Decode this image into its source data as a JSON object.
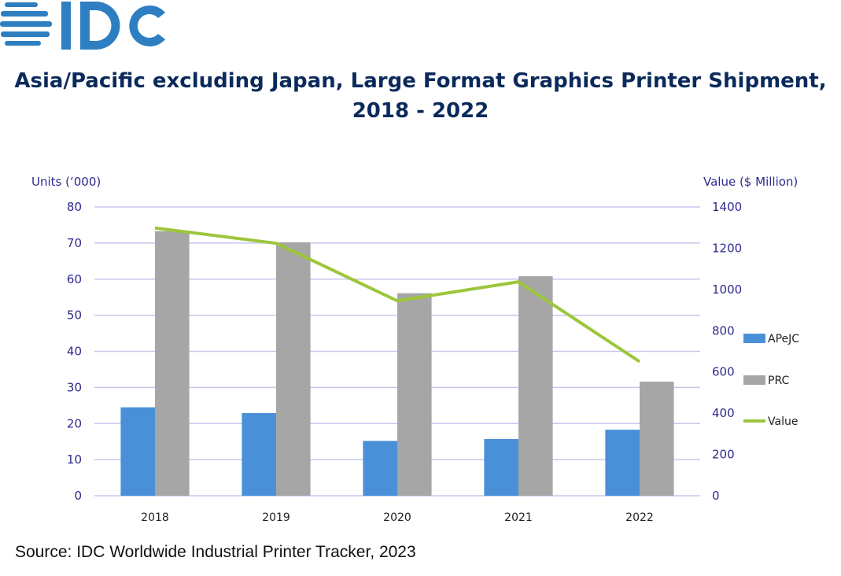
{
  "logo_text": "IDC",
  "colors": {
    "apejc": "#4a90d9",
    "prc": "#a6a6a6",
    "value": "#9dc63b",
    "grid": "#c9c6ee",
    "axis_text": "#2e2a8f",
    "title": "#0b2a5b",
    "logo": "#2e7fc1"
  },
  "chart_data": {
    "type": "bar",
    "title_line1": "Asia/Pacific excluding Japan, Large Format Graphics Printer Shipment,",
    "title_line2": "2018 - 2022",
    "ylabel": "Units (‘000)",
    "y2label": "Value ($ Million)",
    "categories": [
      "2018",
      "2019",
      "2020",
      "2021",
      "2022"
    ],
    "ylim": [
      0,
      80
    ],
    "yticks": [
      "0",
      "10",
      "20",
      "30",
      "40",
      "50",
      "60",
      "70",
      "80"
    ],
    "y2lim": [
      0,
      1400
    ],
    "y2ticks": [
      "0",
      "200",
      "400",
      "600",
      "800",
      "1000",
      "1200",
      "1400"
    ],
    "grid": true,
    "legend_position": "right",
    "series": [
      {
        "name": "APeJC",
        "type": "bar",
        "axis": "left",
        "values": [
          24.5,
          22.9,
          15.2,
          15.7,
          18.3
        ]
      },
      {
        "name": "PRC",
        "type": "bar",
        "axis": "left",
        "values": [
          73.3,
          70.2,
          56.1,
          60.8,
          31.6
        ]
      },
      {
        "name": "Value",
        "type": "line",
        "axis": "right",
        "values": [
          1298,
          1224,
          945,
          1037,
          650
        ]
      }
    ]
  },
  "source": "Source: IDC Worldwide Industrial Printer Tracker, 2023"
}
